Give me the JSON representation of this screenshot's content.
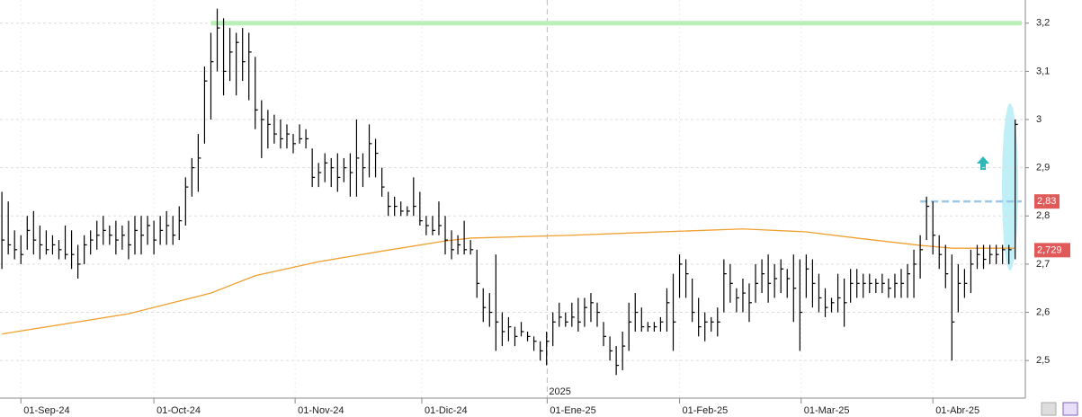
{
  "chart_data": {
    "type": "ohlc",
    "bar_color": "#000000",
    "high": [
      2.85,
      2.83,
      2.77,
      2.76,
      2.8,
      2.81,
      2.78,
      2.77,
      2.76,
      2.75,
      2.78,
      2.77,
      2.74,
      2.76,
      2.77,
      2.79,
      2.8,
      2.78,
      2.79,
      2.78,
      2.79,
      2.8,
      2.8,
      2.8,
      2.79,
      2.8,
      2.81,
      2.8,
      2.82,
      2.88,
      2.92,
      2.97,
      3.11,
      3.18,
      3.23,
      3.21,
      3.19,
      3.18,
      3.19,
      3.18,
      3.13,
      3.04,
      3.02,
      3.01,
      3.0,
      2.99,
      2.97,
      2.99,
      2.98,
      2.94,
      2.91,
      2.93,
      2.92,
      2.93,
      2.92,
      2.93,
      3.0,
      2.93,
      2.99,
      2.96,
      2.9,
      2.85,
      2.84,
      2.83,
      2.82,
      2.88,
      2.85,
      2.8,
      2.8,
      2.83,
      2.8,
      2.77,
      2.76,
      2.79,
      2.75,
      2.73,
      2.65,
      2.64,
      2.72,
      2.6,
      2.59,
      2.57,
      2.58,
      2.56,
      2.55,
      2.54,
      2.56,
      2.6,
      2.62,
      2.6,
      2.62,
      2.63,
      2.63,
      2.64,
      2.62,
      2.58,
      2.55,
      2.53,
      2.56,
      2.62,
      2.64,
      2.61,
      2.58,
      2.58,
      2.59,
      2.65,
      2.68,
      2.72,
      2.71,
      2.67,
      2.63,
      2.6,
      2.59,
      2.61,
      2.71,
      2.7,
      2.65,
      2.67,
      2.66,
      2.7,
      2.71,
      2.72,
      2.7,
      2.71,
      2.69,
      2.72,
      2.71,
      2.72,
      2.71,
      2.68,
      2.65,
      2.63,
      2.68,
      2.67,
      2.69,
      2.69,
      2.68,
      2.68,
      2.67,
      2.68,
      2.67,
      2.68,
      2.69,
      2.7,
      2.73,
      2.76,
      2.84,
      2.83,
      2.76,
      2.74,
      2.72,
      2.7,
      2.69,
      2.73,
      2.74,
      2.74,
      2.74,
      2.74,
      2.74,
      2.74,
      3.0
    ],
    "low": [
      2.69,
      2.72,
      2.71,
      2.7,
      2.73,
      2.72,
      2.71,
      2.72,
      2.72,
      2.71,
      2.71,
      2.69,
      2.67,
      2.7,
      2.72,
      2.73,
      2.74,
      2.74,
      2.72,
      2.73,
      2.71,
      2.72,
      2.72,
      2.74,
      2.72,
      2.74,
      2.74,
      2.74,
      2.75,
      2.78,
      2.84,
      2.85,
      2.95,
      3.0,
      3.1,
      3.05,
      3.08,
      3.05,
      3.08,
      3.04,
      2.98,
      2.92,
      2.94,
      2.95,
      2.94,
      2.94,
      2.93,
      2.95,
      2.94,
      2.86,
      2.86,
      2.87,
      2.86,
      2.85,
      2.87,
      2.84,
      2.84,
      2.86,
      2.88,
      2.88,
      2.84,
      2.8,
      2.8,
      2.8,
      2.8,
      2.8,
      2.78,
      2.76,
      2.76,
      2.76,
      2.72,
      2.71,
      2.72,
      2.72,
      2.72,
      2.63,
      2.58,
      2.57,
      2.52,
      2.53,
      2.54,
      2.53,
      2.55,
      2.54,
      2.52,
      2.5,
      2.49,
      2.53,
      2.57,
      2.57,
      2.57,
      2.56,
      2.57,
      2.58,
      2.57,
      2.53,
      2.5,
      2.47,
      2.48,
      2.52,
      2.56,
      2.56,
      2.56,
      2.56,
      2.56,
      2.56,
      2.52,
      2.63,
      2.63,
      2.58,
      2.55,
      2.54,
      2.56,
      2.55,
      2.6,
      2.62,
      2.6,
      2.6,
      2.58,
      2.62,
      2.64,
      2.62,
      2.63,
      2.64,
      2.63,
      2.58,
      2.52,
      2.63,
      2.61,
      2.6,
      2.59,
      2.6,
      2.6,
      2.57,
      2.62,
      2.63,
      2.63,
      2.64,
      2.64,
      2.64,
      2.63,
      2.63,
      2.63,
      2.63,
      2.63,
      2.67,
      2.75,
      2.72,
      2.69,
      2.65,
      2.5,
      2.6,
      2.63,
      2.64,
      2.69,
      2.69,
      2.7,
      2.7,
      2.7,
      2.7,
      2.71
    ],
    "close": [
      2.75,
      2.74,
      2.73,
      2.72,
      2.77,
      2.75,
      2.74,
      2.73,
      2.74,
      2.73,
      2.72,
      2.72,
      2.7,
      2.74,
      2.75,
      2.76,
      2.77,
      2.76,
      2.75,
      2.76,
      2.74,
      2.77,
      2.76,
      2.78,
      2.75,
      2.77,
      2.78,
      2.76,
      2.79,
      2.86,
      2.9,
      2.92,
      3.08,
      3.12,
      3.19,
      3.1,
      3.14,
      3.16,
      3.12,
      3.14,
      3.02,
      3.0,
      2.99,
      2.97,
      2.96,
      2.97,
      2.95,
      2.96,
      2.96,
      2.88,
      2.89,
      2.91,
      2.9,
      2.88,
      2.9,
      2.89,
      2.92,
      2.9,
      2.95,
      2.93,
      2.86,
      2.82,
      2.82,
      2.81,
      2.81,
      2.82,
      2.79,
      2.78,
      2.77,
      2.78,
      2.75,
      2.73,
      2.74,
      2.73,
      2.73,
      2.66,
      2.61,
      2.6,
      2.58,
      2.56,
      2.57,
      2.55,
      2.56,
      2.55,
      2.54,
      2.52,
      2.54,
      2.58,
      2.59,
      2.58,
      2.59,
      2.58,
      2.61,
      2.62,
      2.6,
      2.55,
      2.52,
      2.49,
      2.53,
      2.58,
      2.6,
      2.57,
      2.57,
      2.57,
      2.58,
      2.62,
      2.58,
      2.7,
      2.68,
      2.6,
      2.57,
      2.58,
      2.58,
      2.58,
      2.68,
      2.66,
      2.63,
      2.64,
      2.62,
      2.66,
      2.68,
      2.66,
      2.67,
      2.69,
      2.67,
      2.65,
      2.6,
      2.69,
      2.66,
      2.63,
      2.61,
      2.62,
      2.63,
      2.62,
      2.66,
      2.66,
      2.66,
      2.66,
      2.66,
      2.66,
      2.65,
      2.66,
      2.66,
      2.68,
      2.7,
      2.73,
      2.82,
      2.76,
      2.72,
      2.68,
      2.58,
      2.66,
      2.66,
      2.7,
      2.72,
      2.71,
      2.72,
      2.72,
      2.73,
      2.73,
      2.99
    ],
    "moving_average": {
      "color": "#f0a030",
      "x": [
        0,
        20,
        33,
        40,
        50,
        60,
        70,
        74,
        90,
        100,
        117,
        127,
        135,
        145,
        150,
        160
      ],
      "values": [
        2.555,
        2.597,
        2.64,
        2.676,
        2.705,
        2.727,
        2.748,
        2.754,
        2.76,
        2.765,
        2.773,
        2.767,
        2.754,
        2.739,
        2.733,
        2.733
      ]
    },
    "hlines": [
      {
        "value": 3.2,
        "color": "#b8f0b8",
        "from": 33
      },
      {
        "value": 2.83,
        "color": "#9cc8e8",
        "from": 145,
        "label": "2,83"
      }
    ],
    "price_label": {
      "value": 2.729,
      "label": "2,729"
    },
    "year_label": "2025",
    "xlim": [
      -0.3,
      161.6
    ],
    "ylim": [
      2.422,
      3.248
    ],
    "yticks": [
      {
        "value": 3.2,
        "label": "3,2"
      },
      {
        "value": 3.1,
        "label": "3,1"
      },
      3,
      {
        "value": 2.9,
        "label": "2,9"
      },
      {
        "value": 2.8,
        "label": "2,8"
      },
      {
        "value": 2.7,
        "label": "2,7"
      },
      {
        "value": 2.6,
        "label": "2,6"
      },
      {
        "value": 2.5,
        "label": "2,5"
      }
    ],
    "xticks": [
      {
        "value": 3,
        "label": "01-Sep-24"
      },
      {
        "value": 24,
        "label": "01-Oct-24"
      },
      {
        "value": 46.3,
        "label": "01-Nov-24"
      },
      {
        "value": 66.3,
        "label": "01-Dic-24"
      },
      {
        "value": 86.1,
        "label": "01-Ene-25"
      },
      {
        "value": 107,
        "label": "01-Feb-25"
      },
      {
        "value": 126.2,
        "label": "01-Mar-25"
      },
      {
        "value": 147,
        "label": "01-Abr-25"
      }
    ],
    "grid": true
  }
}
